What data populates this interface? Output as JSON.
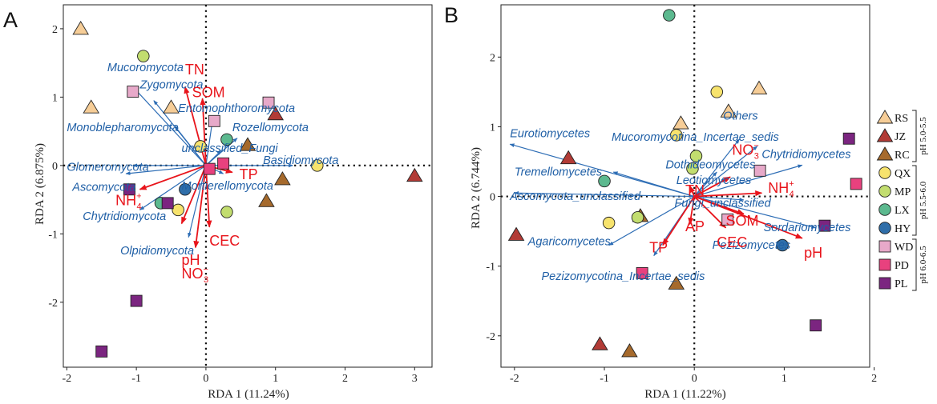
{
  "colors": {
    "species_arrow": "#2d6db5",
    "env_arrow": "#e8141b",
    "frame": "#222222"
  },
  "legend": {
    "items": [
      {
        "code": "RS",
        "shape": "triangle",
        "color": "#f6cd97"
      },
      {
        "code": "JZ",
        "shape": "triangle",
        "color": "#b23b36"
      },
      {
        "code": "RC",
        "shape": "triangle",
        "color": "#a66a2c"
      },
      {
        "code": "QX",
        "shape": "circle",
        "color": "#f7e36d"
      },
      {
        "code": "MP",
        "shape": "circle",
        "color": "#c2dd6f"
      },
      {
        "code": "LX",
        "shape": "circle",
        "color": "#5cb98f"
      },
      {
        "code": "HY",
        "shape": "circle",
        "color": "#2f6ea9"
      },
      {
        "code": "WD",
        "shape": "square",
        "color": "#e7a9c9"
      },
      {
        "code": "PD",
        "shape": "square",
        "color": "#e8417e"
      },
      {
        "code": "PL",
        "shape": "square",
        "color": "#7b2580"
      }
    ],
    "groups": [
      "pH 5.0-5.5",
      "pH 5.5-6.0",
      "pH 6.0-6.5"
    ]
  },
  "chart_data": [
    {
      "panel": "A",
      "type": "scatter",
      "xlabel": "RDA 1 (11.24%)",
      "ylabel": "RDA 2 (6.875%)",
      "xlim": [
        -2.05,
        3.25
      ],
      "ylim": [
        -2.95,
        2.35
      ],
      "xticks": [
        -2,
        -1,
        0,
        1,
        2,
        3
      ],
      "yticks": [
        -2,
        -1,
        0,
        1,
        2
      ],
      "samples": [
        {
          "g": "RS",
          "x": -1.8,
          "y": 2.0
        },
        {
          "g": "RS",
          "x": -1.65,
          "y": 0.85
        },
        {
          "g": "RS",
          "x": -0.5,
          "y": 0.85
        },
        {
          "g": "JZ",
          "x": 3.0,
          "y": -0.15
        },
        {
          "g": "JZ",
          "x": 1.0,
          "y": 0.75
        },
        {
          "g": "RC",
          "x": 0.6,
          "y": 0.3
        },
        {
          "g": "RC",
          "x": 1.1,
          "y": -0.2
        },
        {
          "g": "RC",
          "x": 0.87,
          "y": -0.52
        },
        {
          "g": "QX",
          "x": -0.08,
          "y": 0.28
        },
        {
          "g": "QX",
          "x": 1.6,
          "y": 0.0
        },
        {
          "g": "QX",
          "x": -0.4,
          "y": -0.65
        },
        {
          "g": "MP",
          "x": -0.9,
          "y": 1.6
        },
        {
          "g": "MP",
          "x": 0.3,
          "y": -0.68
        },
        {
          "g": "LX",
          "x": 0.3,
          "y": 0.38
        },
        {
          "g": "LX",
          "x": -0.65,
          "y": -0.55
        },
        {
          "g": "HY",
          "x": -0.3,
          "y": -0.35
        },
        {
          "g": "WD",
          "x": -1.05,
          "y": 1.08
        },
        {
          "g": "WD",
          "x": 0.12,
          "y": 0.65
        },
        {
          "g": "WD",
          "x": 0.9,
          "y": 0.92
        },
        {
          "g": "PD",
          "x": 0.05,
          "y": -0.05
        },
        {
          "g": "PD",
          "x": 0.25,
          "y": 0.03
        },
        {
          "g": "PL",
          "x": -1.1,
          "y": -0.35
        },
        {
          "g": "PL",
          "x": -0.55,
          "y": -0.55
        },
        {
          "g": "PL",
          "x": -1.0,
          "y": -1.98
        },
        {
          "g": "PL",
          "x": -1.5,
          "y": -2.72
        }
      ],
      "species": [
        {
          "name": "Mucoromycota",
          "x": -1.05,
          "y": 1.15,
          "lx": -0.87,
          "ly": 1.38,
          "anchor": "middle"
        },
        {
          "name": "Zygomycota",
          "x": -0.75,
          "y": 0.95,
          "lx": -0.95,
          "ly": 1.13,
          "anchor": "start"
        },
        {
          "name": "Entomophthoromycota",
          "x": 0.1,
          "y": 0.7,
          "lx": -0.4,
          "ly": 0.78,
          "anchor": "start"
        },
        {
          "name": "Monoblepharomycota",
          "x": -0.45,
          "y": 0.58,
          "lx": -2.0,
          "ly": 0.5,
          "anchor": "start"
        },
        {
          "name": "Rozellomycota",
          "x": 0.45,
          "y": 0.4,
          "lx": 0.38,
          "ly": 0.5,
          "anchor": "start"
        },
        {
          "name": "unclassified_Fungi",
          "x": 0.22,
          "y": 0.22,
          "lx": -0.35,
          "ly": 0.2,
          "anchor": "start"
        },
        {
          "name": "Basidiomycota",
          "x": 1.25,
          "y": 0.0,
          "lx": 0.82,
          "ly": 0.02,
          "anchor": "start"
        },
        {
          "name": "Glomeromycota",
          "x": -1.05,
          "y": 0.0,
          "lx": -2.0,
          "ly": -0.08,
          "anchor": "start"
        },
        {
          "name": "Ascomycota",
          "x": -1.15,
          "y": -0.12,
          "lx": -1.92,
          "ly": -0.37,
          "anchor": "start"
        },
        {
          "name": "Mortierellomycota",
          "x": 0.25,
          "y": -0.12,
          "lx": -0.35,
          "ly": -0.35,
          "anchor": "start"
        },
        {
          "name": "Chytridiomycota",
          "x": -0.95,
          "y": -0.65,
          "lx": -1.77,
          "ly": -0.8,
          "anchor": "start"
        },
        {
          "name": "Olpidiomycota",
          "x": -0.25,
          "y": -1.05,
          "lx": -1.23,
          "ly": -1.3,
          "anchor": "start"
        }
      ],
      "env": [
        {
          "name": "TN",
          "x": -0.3,
          "y": 1.15,
          "lx": -0.3,
          "ly": 1.33,
          "sub": "",
          "sup": ""
        },
        {
          "name": "SOM",
          "x": -0.05,
          "y": 0.98,
          "lx": -0.2,
          "ly": 1.0,
          "sub": "",
          "sup": ""
        },
        {
          "name": "TP",
          "x": 0.38,
          "y": -0.1,
          "lx": 0.48,
          "ly": -0.2,
          "sub": "",
          "sup": ""
        },
        {
          "name": "NH",
          "x": -0.95,
          "y": -0.35,
          "lx": -1.3,
          "ly": -0.58,
          "sub": "4",
          "sup": "+"
        },
        {
          "name": "CEC",
          "x": 0.05,
          "y": -0.9,
          "lx": 0.05,
          "ly": -1.17,
          "sub": "",
          "sup": ""
        },
        {
          "name": "pH",
          "x": -0.35,
          "y": -0.85,
          "lx": -0.35,
          "ly": -1.45,
          "sub": "",
          "sup": ""
        },
        {
          "name": "NO",
          "x": -0.15,
          "y": -1.2,
          "lx": -0.35,
          "ly": -1.65,
          "sub": "3",
          "sup": "−"
        }
      ]
    },
    {
      "panel": "B",
      "type": "scatter",
      "xlabel": "RDA 1 (11.22%)",
      "ylabel": "RDA 2 (6.744%)",
      "xlim": [
        -2.15,
        1.95
      ],
      "ylim": [
        -2.45,
        2.75
      ],
      "xticks": [
        -2,
        -1,
        0,
        1,
        2
      ],
      "yticks": [
        -2,
        -1,
        0,
        1,
        2
      ],
      "samples": [
        {
          "g": "RS",
          "x": -0.15,
          "y": 1.05
        },
        {
          "g": "RS",
          "x": 0.38,
          "y": 1.22
        },
        {
          "g": "RS",
          "x": 0.72,
          "y": 1.55
        },
        {
          "g": "JZ",
          "x": -1.4,
          "y": 0.55
        },
        {
          "g": "JZ",
          "x": -1.98,
          "y": -0.55
        },
        {
          "g": "JZ",
          "x": -1.05,
          "y": -2.12
        },
        {
          "g": "RC",
          "x": -0.6,
          "y": -0.28
        },
        {
          "g": "RC",
          "x": -0.2,
          "y": -1.25
        },
        {
          "g": "RC",
          "x": -0.72,
          "y": -2.22
        },
        {
          "g": "QX",
          "x": 0.25,
          "y": 1.5
        },
        {
          "g": "QX",
          "x": -0.2,
          "y": 0.88
        },
        {
          "g": "QX",
          "x": -0.95,
          "y": -0.38
        },
        {
          "g": "MP",
          "x": 0.02,
          "y": 0.58
        },
        {
          "g": "MP",
          "x": -0.02,
          "y": 0.4
        },
        {
          "g": "MP",
          "x": -0.63,
          "y": -0.3
        },
        {
          "g": "LX",
          "x": -0.28,
          "y": 2.6
        },
        {
          "g": "LX",
          "x": -1.0,
          "y": 0.22
        },
        {
          "g": "HY",
          "x": 0.98,
          "y": -0.7
        },
        {
          "g": "WD",
          "x": 0.73,
          "y": 0.37
        },
        {
          "g": "WD",
          "x": 0.37,
          "y": -0.33
        },
        {
          "g": "PD",
          "x": 1.8,
          "y": 0.18
        },
        {
          "g": "PD",
          "x": -0.58,
          "y": -1.1
        },
        {
          "g": "PL",
          "x": 1.72,
          "y": 0.83
        },
        {
          "g": "PL",
          "x": 1.45,
          "y": -0.42
        },
        {
          "g": "PL",
          "x": 1.35,
          "y": -1.85
        }
      ],
      "species": [
        {
          "name": "Others",
          "x": 0.5,
          "y": 0.82,
          "lx": 0.32,
          "ly": 1.1,
          "anchor": "start"
        },
        {
          "name": "Mucoromycotina_Incertae_sedis",
          "x": 0.7,
          "y": 0.72,
          "lx": -0.92,
          "ly": 0.8,
          "anchor": "start"
        },
        {
          "name": "Eurotiomycetes",
          "x": -2.05,
          "y": 0.75,
          "lx": -2.05,
          "ly": 0.85,
          "anchor": "start"
        },
        {
          "name": "Chytridiomycetes",
          "x": 1.2,
          "y": 0.45,
          "lx": 0.75,
          "ly": 0.55,
          "anchor": "start"
        },
        {
          "name": "Dothideomycetes",
          "x": 0.25,
          "y": 0.35,
          "lx": -0.32,
          "ly": 0.4,
          "anchor": "start"
        },
        {
          "name": "Leotiomycetes",
          "x": 0.35,
          "y": 0.25,
          "lx": -0.2,
          "ly": 0.18,
          "anchor": "start"
        },
        {
          "name": "Tremellomycetes",
          "x": -0.9,
          "y": 0.35,
          "lx": -2.0,
          "ly": 0.3,
          "anchor": "start"
        },
        {
          "name": "Ascomycota_unclassified",
          "x": -2.0,
          "y": 0.05,
          "lx": -2.05,
          "ly": -0.05,
          "anchor": "start"
        },
        {
          "name": "Fungi_unclassified",
          "x": 0.55,
          "y": -0.05,
          "lx": -0.22,
          "ly": -0.15,
          "anchor": "start"
        },
        {
          "name": "Sordariomycetes",
          "x": 1.35,
          "y": -0.45,
          "lx": 0.77,
          "ly": -0.5,
          "anchor": "start"
        },
        {
          "name": "Pezizomycetes",
          "x": 0.9,
          "y": -0.45,
          "lx": 0.2,
          "ly": -0.75,
          "anchor": "start"
        },
        {
          "name": "Agaricomycetes",
          "x": -0.95,
          "y": -0.7,
          "lx": -1.85,
          "ly": -0.7,
          "anchor": "start"
        },
        {
          "name": "Pezizomycotina_Incertae_sedis",
          "x": -0.45,
          "y": -0.85,
          "lx": -1.7,
          "ly": -1.2,
          "anchor": "start"
        }
      ],
      "env": [
        {
          "name": "NO",
          "x": 0.4,
          "y": 0.28,
          "lx": 0.42,
          "ly": 0.6,
          "sub": "3",
          "sup": "−"
        },
        {
          "name": "TN",
          "x": -0.05,
          "y": 0.15,
          "lx": -0.1,
          "ly": 0.02,
          "sub": "",
          "sup": ""
        },
        {
          "name": "NH",
          "x": 0.75,
          "y": 0.05,
          "lx": 0.82,
          "ly": 0.05,
          "sub": "4",
          "sup": "+"
        },
        {
          "name": "SOM",
          "x": 0.55,
          "y": -0.25,
          "lx": 0.35,
          "ly": -0.42,
          "sub": "",
          "sup": ""
        },
        {
          "name": "CEC",
          "x": 0.35,
          "y": -0.45,
          "lx": 0.25,
          "ly": -0.73,
          "sub": "",
          "sup": ""
        },
        {
          "name": "AP",
          "x": -0.05,
          "y": -0.4,
          "lx": -0.1,
          "ly": -0.5,
          "sub": "",
          "sup": ""
        },
        {
          "name": "TP",
          "x": -0.35,
          "y": -0.7,
          "lx": -0.5,
          "ly": -0.8,
          "sub": "",
          "sup": ""
        },
        {
          "name": "pH",
          "x": 1.2,
          "y": -0.6,
          "lx": 1.22,
          "ly": -0.88,
          "sub": "",
          "sup": ""
        }
      ]
    }
  ]
}
